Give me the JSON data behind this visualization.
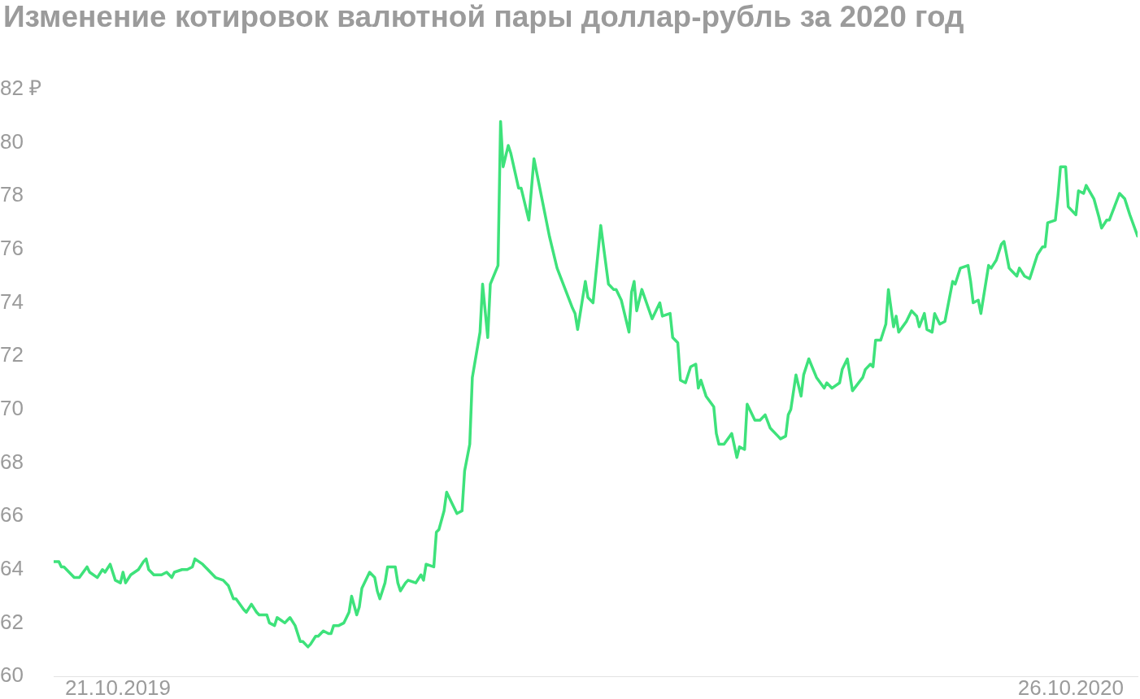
{
  "chart_data": {
    "type": "line",
    "title": "Изменение котировок валютной пары доллар-рубль за 2020 год",
    "xlim": [
      "2019-09-26",
      "2020-11-21"
    ],
    "xticks": [
      {
        "value": "2019-10-21",
        "label": "21.10.2019"
      },
      {
        "value": "2020-10-26",
        "label": "26.10.2020"
      }
    ],
    "ylim": [
      60,
      82
    ],
    "yticks": [
      60,
      62,
      64,
      66,
      68,
      70,
      72,
      74,
      76,
      78,
      80,
      {
        "value": 82,
        "label": "82 ₽"
      }
    ],
    "grid": false,
    "legend": false,
    "series": [
      {
        "color": "#3ee27b",
        "x": [
          "2019-09-26",
          "2019-09-28",
          "2019-09-29",
          "2019-09-30",
          "2019-10-04",
          "2019-10-06",
          "2019-10-09",
          "2019-10-10",
          "2019-10-13",
          "2019-10-15",
          "2019-10-16",
          "2019-10-18",
          "2019-10-20",
          "2019-10-22",
          "2019-10-23",
          "2019-10-24",
          "2019-10-26",
          "2019-10-29",
          "2019-10-31",
          "2019-11-01",
          "2019-11-02",
          "2019-11-04",
          "2019-11-07",
          "2019-11-09",
          "2019-11-11",
          "2019-11-12",
          "2019-11-15",
          "2019-11-17",
          "2019-11-19",
          "2019-11-20",
          "2019-11-23",
          "2019-11-24",
          "2019-11-27",
          "2019-11-28",
          "2019-12-01",
          "2019-12-03",
          "2019-12-05",
          "2019-12-06",
          "2019-12-09",
          "2019-12-10",
          "2019-12-12",
          "2019-12-14",
          "2019-12-15",
          "2019-12-18",
          "2019-12-19",
          "2019-12-21",
          "2019-12-22",
          "2019-12-25",
          "2019-12-26",
          "2019-12-27",
          "2019-12-29",
          "2019-12-31",
          "2020-01-01",
          "2020-01-03",
          "2020-01-04",
          "2020-01-06",
          "2020-01-07",
          "2020-01-09",
          "2020-01-11",
          "2020-01-12",
          "2020-01-13",
          "2020-01-15",
          "2020-01-17",
          "2020-01-19",
          "2020-01-20",
          "2020-01-22",
          "2020-01-23",
          "2020-01-24",
          "2020-01-27",
          "2020-01-29",
          "2020-01-30",
          "2020-01-31",
          "2020-02-02",
          "2020-02-03",
          "2020-02-06",
          "2020-02-07",
          "2020-02-08",
          "2020-02-10",
          "2020-02-11",
          "2020-02-14",
          "2020-02-16",
          "2020-02-17",
          "2020-02-18",
          "2020-02-21",
          "2020-02-22",
          "2020-02-23",
          "2020-02-25",
          "2020-02-26",
          "2020-02-28",
          "2020-03-01",
          "2020-03-03",
          "2020-03-04",
          "2020-03-06",
          "2020-03-07",
          "2020-03-10",
          "2020-03-11",
          "2020-03-13",
          "2020-03-14",
          "2020-03-17",
          "2020-03-18",
          "2020-03-19",
          "2020-03-21",
          "2020-03-22",
          "2020-03-25",
          "2020-03-26",
          "2020-03-29",
          "2020-03-31",
          "2020-04-06",
          "2020-04-09",
          "2020-04-15",
          "2020-04-16",
          "2020-04-17",
          "2020-04-20",
          "2020-04-21",
          "2020-04-23",
          "2020-04-26",
          "2020-04-29",
          "2020-05-01",
          "2020-05-02",
          "2020-05-04",
          "2020-05-07",
          "2020-05-08",
          "2020-05-09",
          "2020-05-10",
          "2020-05-12",
          "2020-05-16",
          "2020-05-19",
          "2020-05-20",
          "2020-05-23",
          "2020-05-24",
          "2020-05-26",
          "2020-05-27",
          "2020-05-29",
          "2020-05-31",
          "2020-06-02",
          "2020-06-03",
          "2020-06-04",
          "2020-06-06",
          "2020-06-09",
          "2020-06-10",
          "2020-06-11",
          "2020-06-13",
          "2020-06-16",
          "2020-06-18",
          "2020-06-19",
          "2020-06-21",
          "2020-06-22",
          "2020-06-25",
          "2020-06-27",
          "2020-06-29",
          "2020-07-01",
          "2020-07-04",
          "2020-07-05",
          "2020-07-07",
          "2020-07-08",
          "2020-07-09",
          "2020-07-11",
          "2020-07-13",
          "2020-07-14",
          "2020-07-16",
          "2020-07-19",
          "2020-07-22",
          "2020-07-23",
          "2020-07-25",
          "2020-07-28",
          "2020-07-29",
          "2020-07-31",
          "2020-08-02",
          "2020-08-06",
          "2020-08-07",
          "2020-08-09",
          "2020-08-10",
          "2020-08-11",
          "2020-08-13",
          "2020-08-15",
          "2020-08-16",
          "2020-08-18",
          "2020-08-19",
          "2020-08-20",
          "2020-08-23",
          "2020-08-25",
          "2020-08-27",
          "2020-08-28",
          "2020-08-30",
          "2020-08-31",
          "2020-09-02",
          "2020-09-03",
          "2020-09-05",
          "2020-09-07",
          "2020-09-08",
          "2020-09-10",
          "2020-09-11",
          "2020-09-13",
          "2020-09-16",
          "2020-09-17",
          "2020-09-18",
          "2020-09-20",
          "2020-09-21",
          "2020-09-24",
          "2020-09-25",
          "2020-09-27",
          "2020-09-29",
          "2020-09-30",
          "2020-10-02",
          "2020-10-03",
          "2020-10-05",
          "2020-10-06",
          "2020-10-08",
          "2020-10-10",
          "2020-10-11",
          "2020-10-13",
          "2020-10-15",
          "2020-10-16",
          "2020-10-17",
          "2020-10-20",
          "2020-10-21",
          "2020-10-22",
          "2020-10-24",
          "2020-10-25",
          "2020-10-28",
          "2020-10-29",
          "2020-10-31",
          "2020-11-01",
          "2020-11-04",
          "2020-11-06",
          "2020-11-07",
          "2020-11-09",
          "2020-11-10",
          "2020-11-12",
          "2020-11-14",
          "2020-11-16",
          "2020-11-17",
          "2020-11-18",
          "2020-11-21"
        ],
        "values": [
          64.3,
          64.3,
          64.1,
          64.1,
          63.7,
          63.7,
          64.1,
          63.9,
          63.7,
          64.0,
          63.9,
          64.2,
          63.6,
          63.5,
          63.9,
          63.5,
          63.8,
          64.0,
          64.3,
          64.4,
          64.0,
          63.8,
          63.8,
          63.9,
          63.7,
          63.9,
          64.0,
          64.0,
          64.1,
          64.4,
          64.2,
          64.1,
          63.8,
          63.7,
          63.6,
          63.4,
          62.9,
          62.9,
          62.5,
          62.4,
          62.7,
          62.4,
          62.3,
          62.3,
          62.0,
          61.9,
          62.2,
          62.0,
          62.1,
          62.2,
          61.9,
          61.3,
          61.3,
          61.1,
          61.2,
          61.5,
          61.5,
          61.7,
          61.6,
          61.6,
          61.9,
          61.9,
          62.0,
          62.4,
          63.0,
          62.3,
          62.6,
          63.3,
          63.9,
          63.7,
          63.2,
          62.9,
          63.5,
          64.1,
          64.1,
          63.5,
          63.2,
          63.5,
          63.6,
          63.5,
          63.8,
          63.6,
          64.2,
          64.1,
          65.4,
          65.5,
          66.2,
          66.9,
          66.5,
          66.1,
          66.2,
          67.7,
          68.7,
          71.2,
          72.9,
          74.7,
          72.7,
          74.7,
          75.4,
          80.8,
          79.1,
          79.9,
          79.6,
          78.3,
          78.3,
          77.1,
          79.4,
          76.5,
          75.3,
          73.8,
          73.6,
          73.0,
          74.8,
          74.2,
          74.0,
          76.9,
          74.7,
          74.5,
          74.5,
          74.1,
          72.9,
          74.4,
          74.8,
          73.7,
          74.5,
          73.4,
          74.0,
          73.5,
          73.6,
          72.7,
          72.5,
          71.1,
          71.0,
          71.6,
          71.7,
          70.8,
          71.1,
          70.5,
          70.1,
          69.1,
          68.7,
          68.7,
          69.1,
          68.2,
          68.6,
          68.5,
          70.2,
          69.6,
          69.6,
          69.8,
          69.3,
          69.0,
          68.9,
          69.0,
          69.8,
          70.0,
          71.3,
          70.5,
          71.3,
          71.9,
          71.2,
          70.8,
          71.0,
          70.8,
          71.0,
          71.5,
          71.9,
          70.7,
          71.2,
          71.5,
          71.7,
          71.6,
          72.6,
          72.6,
          73.2,
          74.5,
          73.1,
          73.5,
          72.9,
          73.3,
          73.7,
          73.5,
          73.1,
          73.6,
          73.0,
          72.9,
          73.6,
          73.2,
          73.3,
          73.8,
          74.8,
          74.7,
          75.3,
          75.4,
          74.8,
          74.0,
          74.1,
          73.6,
          75.4,
          75.3,
          75.6,
          76.2,
          76.3,
          75.3,
          75.2,
          75.0,
          75.3,
          75.0,
          74.9,
          75.2,
          75.8,
          76.1,
          76.1,
          77.0,
          77.1,
          78.0,
          79.1,
          79.1,
          77.6,
          77.3,
          78.2,
          78.1,
          78.4,
          77.9,
          77.2,
          76.8,
          77.1,
          77.1,
          77.6,
          78.1,
          77.9,
          77.6,
          77.3,
          76.5
        ]
      }
    ]
  }
}
